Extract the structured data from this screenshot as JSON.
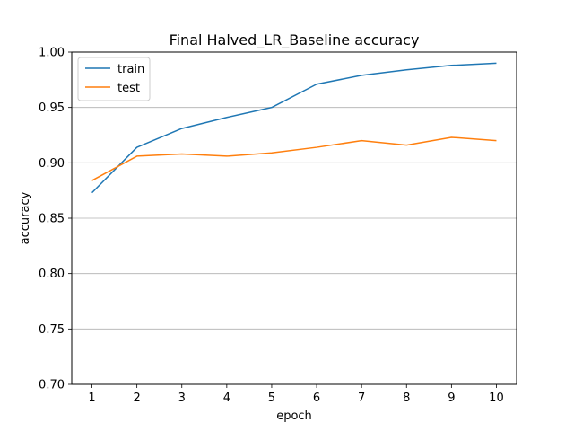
{
  "chart_data": {
    "type": "line",
    "title": "Final Halved_LR_Baseline accuracy",
    "xlabel": "epoch",
    "ylabel": "accuracy",
    "x": [
      1,
      2,
      3,
      4,
      5,
      6,
      7,
      8,
      9,
      10
    ],
    "xticks": [
      "1",
      "2",
      "3",
      "4",
      "5",
      "6",
      "7",
      "8",
      "9",
      "10"
    ],
    "ylim": [
      0.7,
      1.0
    ],
    "yticks": [
      "0.70",
      "0.75",
      "0.80",
      "0.85",
      "0.90",
      "0.95",
      "1.00"
    ],
    "grid": "horizontal",
    "legend_position": "upper-left",
    "series": [
      {
        "name": "train",
        "color": "#1f77b4",
        "values": [
          0.873,
          0.914,
          0.931,
          0.941,
          0.95,
          0.971,
          0.979,
          0.984,
          0.988,
          0.99
        ]
      },
      {
        "name": "test",
        "color": "#ff7f0e",
        "values": [
          0.884,
          0.906,
          0.908,
          0.906,
          0.909,
          0.914,
          0.92,
          0.916,
          0.923,
          0.92
        ]
      }
    ]
  }
}
